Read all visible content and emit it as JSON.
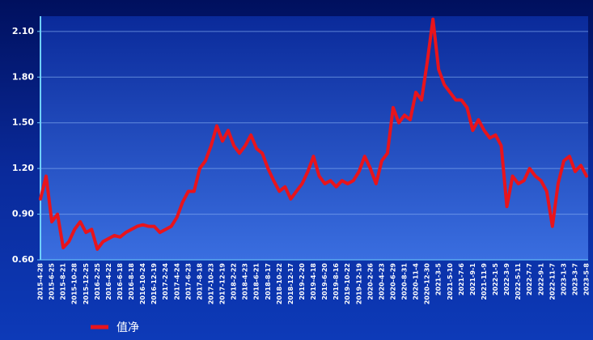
{
  "chart_data": {
    "type": "line",
    "categories": [
      "2015-4-28",
      null,
      "2015-6-25",
      null,
      "2015-8-21",
      null,
      "2015-10-28",
      null,
      "2015-12-25",
      null,
      "2016-2-25",
      null,
      "2016-4-22",
      null,
      "2016-6-18",
      null,
      "2016-8-18",
      null,
      "2016-10-24",
      null,
      "2016-12-19",
      null,
      "2017-2-24",
      null,
      "2017-4-24",
      null,
      "2017-6-23",
      null,
      "2017-8-18",
      null,
      "2017-10-23",
      null,
      "2017-12-19",
      null,
      "2018-2-22",
      null,
      "2018-4-23",
      null,
      "2018-6-21",
      null,
      "2018-8-17",
      null,
      "2018-10-22",
      null,
      "2018-12-17",
      null,
      "2019-2-20",
      null,
      "2019-4-18",
      null,
      "2019-6-20",
      null,
      "2019-8-16",
      null,
      "2019-10-22",
      null,
      "2019-12-19",
      null,
      "2020-2-26",
      null,
      "2020-4-23",
      null,
      "2020-6-29",
      null,
      "2020-8-31",
      null,
      "2020-11-4",
      null,
      "2020-12-30",
      null,
      "2021-3-5",
      null,
      "2021-5-10",
      null,
      "2021-7-6",
      null,
      "2021-9-1",
      null,
      "2021-11-9",
      null,
      "2022-1-5",
      null,
      "2022-3-9",
      null,
      "2022-5-11",
      null,
      "2022-7-7",
      null,
      "2022-9-1",
      null,
      "2022-11-7",
      null,
      "2023-1-3",
      null,
      "2023-3-7",
      null,
      "2023-5-8"
    ],
    "series": [
      {
        "name": "值净",
        "color": "#e8141c",
        "values": [
          1.0,
          1.15,
          0.85,
          0.9,
          0.68,
          0.72,
          0.8,
          0.85,
          0.78,
          0.8,
          0.67,
          0.72,
          0.74,
          0.76,
          0.75,
          0.78,
          0.8,
          0.82,
          0.83,
          0.82,
          0.82,
          0.78,
          0.8,
          0.82,
          0.88,
          0.98,
          1.05,
          1.05,
          1.2,
          1.25,
          1.35,
          1.48,
          1.38,
          1.45,
          1.35,
          1.3,
          1.35,
          1.42,
          1.33,
          1.3,
          1.2,
          1.12,
          1.05,
          1.08,
          1.0,
          1.05,
          1.1,
          1.18,
          1.28,
          1.15,
          1.1,
          1.12,
          1.08,
          1.12,
          1.1,
          1.12,
          1.18,
          1.28,
          1.2,
          1.1,
          1.25,
          1.3,
          1.6,
          1.5,
          1.55,
          1.52,
          1.7,
          1.65,
          1.9,
          2.18,
          1.85,
          1.75,
          1.7,
          1.65,
          1.65,
          1.6,
          1.45,
          1.52,
          1.45,
          1.4,
          1.42,
          1.35,
          0.95,
          1.15,
          1.1,
          1.12,
          1.2,
          1.15,
          1.12,
          1.05,
          0.82,
          1.1,
          1.25,
          1.28,
          1.18,
          1.22,
          1.15
        ]
      }
    ],
    "ylim": [
      0.6,
      2.2
    ],
    "yticks": [
      {
        "value": 0.6,
        "label": "0.60"
      },
      {
        "value": 0.9,
        "label": "0.90"
      },
      {
        "value": 1.2,
        "label": "1.20"
      },
      {
        "value": 1.5,
        "label": "1.50"
      },
      {
        "value": 1.8,
        "label": "1.80"
      },
      {
        "value": 2.1,
        "label": "2.10"
      }
    ],
    "grid": true
  }
}
